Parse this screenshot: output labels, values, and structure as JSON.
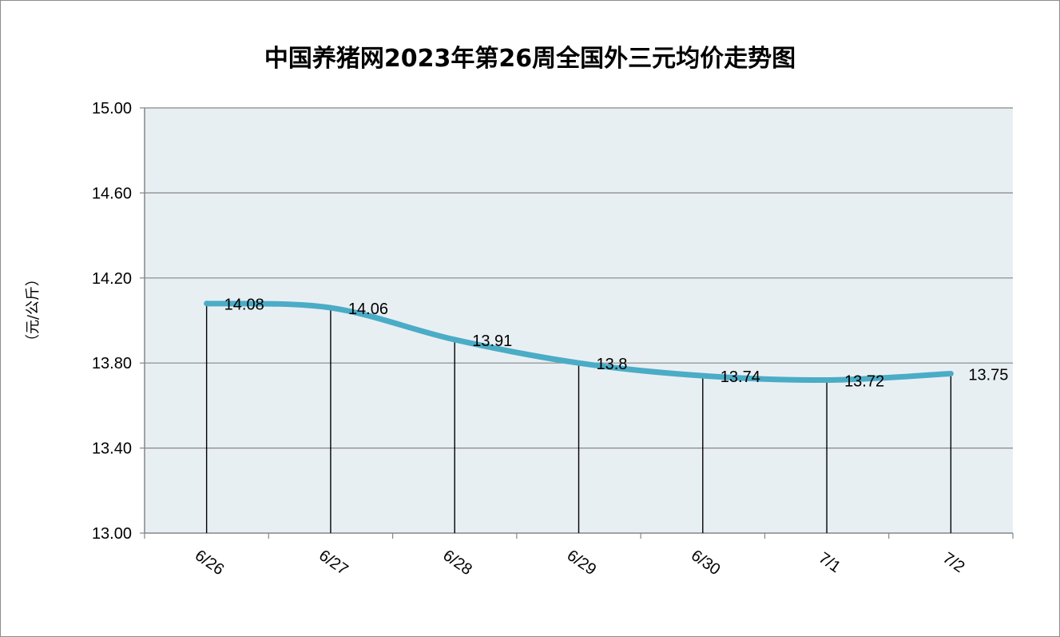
{
  "chart_data": {
    "type": "line",
    "title": "中国养猪网2023年第26周全国外三元均价走势图",
    "xlabel": "",
    "ylabel": "（元/公斤）",
    "categories": [
      "6/26",
      "6/27",
      "6/28",
      "6/29",
      "6/30",
      "7/1",
      "7/2"
    ],
    "series": [
      {
        "values": [
          14.08,
          14.06,
          13.91,
          13.8,
          13.74,
          13.72,
          13.75
        ],
        "labels": [
          "14.08",
          "14.06",
          "13.91",
          "13.8",
          "13.74",
          "13.72",
          "13.75"
        ]
      }
    ],
    "ylim": [
      13.0,
      15.0
    ],
    "yticks": [
      "13.00",
      "13.40",
      "13.80",
      "14.20",
      "14.60",
      "15.00"
    ],
    "ytick_values": [
      13.0,
      13.4,
      13.8,
      14.2,
      14.6,
      15.0
    ],
    "grid": true,
    "drop_lines": true,
    "colors": {
      "line": "#4bacc6",
      "plot_bg": "#e8eff3",
      "grid": "#868686",
      "drop_line": "#000000"
    }
  }
}
